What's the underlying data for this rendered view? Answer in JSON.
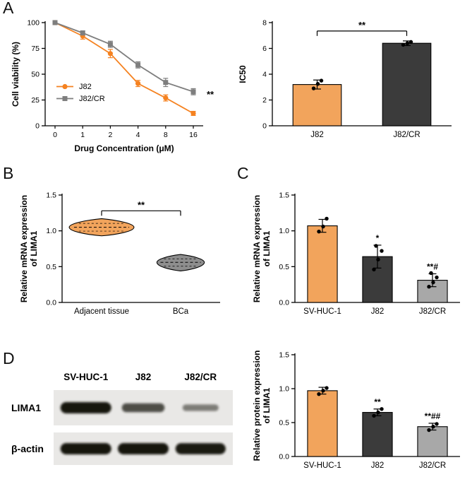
{
  "figure": {
    "panel_labels": {
      "a": "A",
      "b": "B",
      "c": "C",
      "d": "D"
    }
  },
  "colors": {
    "orange_line": "#F58220",
    "orange_fill": "#F2A45C",
    "gray_line": "#7E7E7E",
    "dark_fill": "#3B3B3B",
    "light_gray_fill": "#A8A8A8",
    "violin_gray": "#8E8E8E"
  },
  "chart_data": [
    {
      "id": "viability",
      "type": "line",
      "x_categories": [
        "0",
        "1",
        "2",
        "4",
        "8",
        "16"
      ],
      "xlabel": "Drug Concentration (μM)",
      "ylabel": "Cell viability (%)",
      "ylim": [
        0,
        100
      ],
      "yticks": [
        0,
        25,
        50,
        75,
        100
      ],
      "ytick_labels": [
        "0",
        "25",
        "50",
        "75",
        "100"
      ],
      "series": [
        {
          "name": "J82",
          "color": "#F58220",
          "marker": "circle",
          "values": [
            100,
            87,
            70,
            41,
            27,
            12
          ],
          "errors": [
            2,
            3,
            4,
            3,
            3,
            2
          ]
        },
        {
          "name": "J82/CR",
          "color": "#7E7E7E",
          "marker": "square",
          "values": [
            100,
            90,
            79,
            59,
            42,
            33
          ],
          "errors": [
            2,
            2,
            3,
            3,
            4,
            3
          ]
        }
      ],
      "legend_position": "inside-left-bottom",
      "end_annotation": {
        "text": "**",
        "at": 30
      }
    },
    {
      "id": "ic50",
      "type": "bar",
      "categories": [
        "J82",
        "J82/CR"
      ],
      "values": [
        3.2,
        6.4
      ],
      "errors": [
        0.35,
        0.18
      ],
      "points": [
        [
          2.9,
          3.25,
          3.5
        ],
        [
          6.28,
          6.4,
          6.5
        ]
      ],
      "colors": [
        "#F2A45C",
        "#3B3B3B"
      ],
      "ylabel": "IC50",
      "ylim": [
        0,
        8
      ],
      "yticks": [
        0,
        2,
        4,
        6,
        8
      ],
      "ytick_labels": [
        "0",
        "2",
        "4",
        "6",
        "8"
      ],
      "bracket": {
        "from": 0,
        "to": 1,
        "at": 7.35,
        "text": "**"
      }
    },
    {
      "id": "tissue-violin",
      "type": "violin",
      "categories": [
        "Adjacent tissue",
        "BCa"
      ],
      "medians": [
        1.05,
        0.56
      ],
      "ranges": [
        [
          0.93,
          1.17
        ],
        [
          0.44,
          0.67
        ]
      ],
      "widths": [
        0.82,
        0.6
      ],
      "colors": [
        "#F2A45C",
        "#8E8E8E"
      ],
      "ylabel_lines": [
        "Relative mRNA expression",
        "of LIMA1"
      ],
      "ylim": [
        0,
        1.5
      ],
      "yticks": [
        0,
        0.5,
        1,
        1.5
      ],
      "ytick_labels": [
        "0.0",
        "0.5",
        "1.0",
        "1.5"
      ],
      "bracket": {
        "from": 0,
        "to": 1,
        "at": 1.28,
        "text": "**"
      }
    },
    {
      "id": "mrna-cells",
      "type": "bar",
      "categories": [
        "SV-HUC-1",
        "J82",
        "J82/CR"
      ],
      "values": [
        1.07,
        0.64,
        0.31
      ],
      "errors": [
        0.09,
        0.16,
        0.09
      ],
      "points": [
        [
          0.99,
          1.06,
          1.17
        ],
        [
          0.46,
          0.6,
          0.72,
          0.79
        ],
        [
          0.22,
          0.28,
          0.35,
          0.41
        ]
      ],
      "colors": [
        "#F2A45C",
        "#3B3B3B",
        "#A8A8A8"
      ],
      "annotations": [
        "",
        "*",
        "**#"
      ],
      "ylabel_lines": [
        "Relative mRNA expression",
        "of LIMA1"
      ],
      "ylim": [
        0,
        1.5
      ],
      "yticks": [
        0,
        0.5,
        1,
        1.5
      ],
      "ytick_labels": [
        "0.0",
        "0.5",
        "1.0",
        "1.5"
      ]
    },
    {
      "id": "protein-cells",
      "type": "bar",
      "categories": [
        "SV-HUC-1",
        "J82",
        "J82/CR"
      ],
      "values": [
        0.97,
        0.65,
        0.44
      ],
      "errors": [
        0.05,
        0.05,
        0.05
      ],
      "points": [
        [
          0.92,
          0.97,
          1.01
        ],
        [
          0.6,
          0.65,
          0.7
        ],
        [
          0.39,
          0.44,
          0.48
        ]
      ],
      "colors": [
        "#F2A45C",
        "#3B3B3B",
        "#A8A8A8"
      ],
      "annotations": [
        "",
        "**",
        "**##"
      ],
      "ylabel_lines": [
        "Relative protein expression",
        "of LIMA1"
      ],
      "ylim": [
        0,
        1.5
      ],
      "yticks": [
        0,
        0.5,
        1,
        1.5
      ],
      "ytick_labels": [
        "0.0",
        "0.5",
        "1.0",
        "1.5"
      ]
    }
  ],
  "blot": {
    "lane_labels": [
      "SV-HUC-1",
      "J82",
      "J82/CR"
    ],
    "rows": [
      {
        "label": "LIMA1",
        "band_intensity": [
          1.0,
          0.62,
          0.3
        ]
      },
      {
        "label": "β-actin",
        "band_intensity": [
          1.0,
          1.0,
          0.97
        ]
      }
    ]
  }
}
